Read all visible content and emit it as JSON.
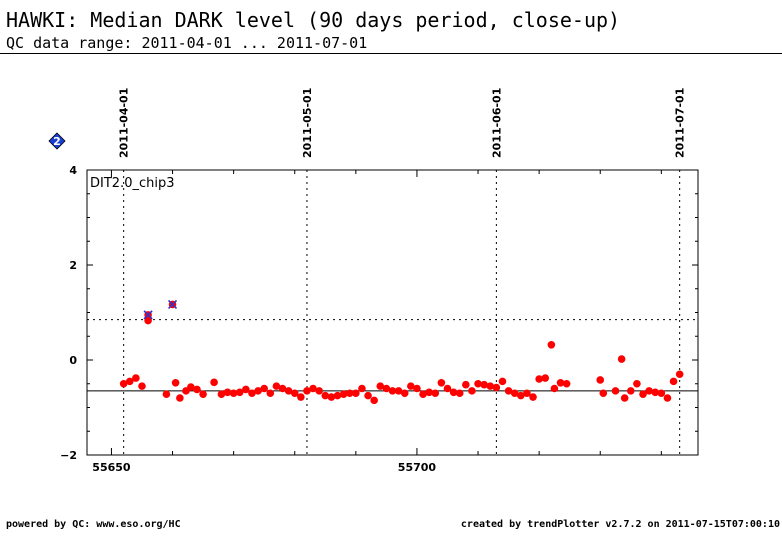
{
  "page": {
    "title": "HAWKI: Median DARK level (90 days period, close-up)",
    "subtitle": "QC data range: 2011-04-01 ... 2011-07-01",
    "footer_left": "powered by QC: www.eso.org/HC",
    "footer_right": "created by trendPlotter v2.7.2 on 2011-07-15T07:00:10"
  },
  "chart_data": {
    "type": "scatter",
    "panel_label": "DIT2.0_chip3",
    "xlim": [
      55646,
      55746
    ],
    "ylim": [
      -2,
      4
    ],
    "x_ticks": [
      55650,
      55700
    ],
    "x_tick_labels": [
      "55650",
      "55700"
    ],
    "y_ticks": [
      -2,
      0,
      2,
      4
    ],
    "y_tick_labels": [
      "−2",
      "0",
      "2",
      "4"
    ],
    "date_markers": [
      {
        "mjd": 55652,
        "label": "2011-04-01"
      },
      {
        "mjd": 55682,
        "label": "2011-05-01"
      },
      {
        "mjd": 55713,
        "label": "2011-06-01"
      },
      {
        "mjd": 55743,
        "label": "2011-07-01"
      }
    ],
    "reference_line": -0.65,
    "threshold_line": 0.85,
    "marker_badge": "2",
    "series": [
      {
        "marker": "filled-circle",
        "color": "#ff0000",
        "points": [
          [
            55652.0,
            -0.5
          ],
          [
            55653.0,
            -0.45
          ],
          [
            55654.0,
            -0.38
          ],
          [
            55655.0,
            -0.55
          ],
          [
            55656.0,
            0.83
          ],
          [
            55659.0,
            -0.72
          ],
          [
            55660.5,
            -0.48
          ],
          [
            55661.2,
            -0.8
          ],
          [
            55662.2,
            -0.65
          ],
          [
            55663.0,
            -0.57
          ],
          [
            55664.0,
            -0.62
          ],
          [
            55665.0,
            -0.72
          ],
          [
            55666.8,
            -0.47
          ],
          [
            55668.0,
            -0.72
          ],
          [
            55669.0,
            -0.68
          ],
          [
            55670.0,
            -0.7
          ],
          [
            55671.0,
            -0.68
          ],
          [
            55672.0,
            -0.62
          ],
          [
            55673.0,
            -0.7
          ],
          [
            55674.0,
            -0.65
          ],
          [
            55675.0,
            -0.6
          ],
          [
            55676.0,
            -0.7
          ],
          [
            55677.0,
            -0.55
          ],
          [
            55678.0,
            -0.6
          ],
          [
            55679.0,
            -0.65
          ],
          [
            55680.0,
            -0.7
          ],
          [
            55681.0,
            -0.78
          ],
          [
            55682.0,
            -0.65
          ],
          [
            55683.0,
            -0.6
          ],
          [
            55684.0,
            -0.65
          ],
          [
            55685.0,
            -0.75
          ],
          [
            55686.0,
            -0.78
          ],
          [
            55687.0,
            -0.75
          ],
          [
            55688.0,
            -0.72
          ],
          [
            55689.0,
            -0.7
          ],
          [
            55690.0,
            -0.7
          ],
          [
            55691.0,
            -0.6
          ],
          [
            55692.0,
            -0.75
          ],
          [
            55693.0,
            -0.85
          ],
          [
            55694.0,
            -0.55
          ],
          [
            55695.0,
            -0.6
          ],
          [
            55696.0,
            -0.65
          ],
          [
            55697.0,
            -0.65
          ],
          [
            55698.0,
            -0.7
          ],
          [
            55699.0,
            -0.55
          ],
          [
            55700.0,
            -0.6
          ],
          [
            55701.0,
            -0.72
          ],
          [
            55702.0,
            -0.68
          ],
          [
            55703.0,
            -0.7
          ],
          [
            55704.0,
            -0.48
          ],
          [
            55705.0,
            -0.6
          ],
          [
            55706.0,
            -0.68
          ],
          [
            55707.0,
            -0.7
          ],
          [
            55708.0,
            -0.52
          ],
          [
            55709.0,
            -0.65
          ],
          [
            55710.0,
            -0.5
          ],
          [
            55711.0,
            -0.52
          ],
          [
            55712.0,
            -0.55
          ],
          [
            55713.0,
            -0.58
          ],
          [
            55714.0,
            -0.45
          ],
          [
            55715.0,
            -0.65
          ],
          [
            55716.0,
            -0.7
          ],
          [
            55717.0,
            -0.75
          ],
          [
            55718.0,
            -0.7
          ],
          [
            55719.0,
            -0.78
          ],
          [
            55720.0,
            -0.4
          ],
          [
            55721.0,
            -0.38
          ],
          [
            55722.0,
            0.32
          ],
          [
            55722.5,
            -0.6
          ],
          [
            55723.5,
            -0.48
          ],
          [
            55724.5,
            -0.5
          ],
          [
            55730.0,
            -0.42
          ],
          [
            55730.5,
            -0.7
          ],
          [
            55732.5,
            -0.65
          ],
          [
            55733.5,
            0.02
          ],
          [
            55734.0,
            -0.8
          ],
          [
            55735.0,
            -0.65
          ],
          [
            55736.0,
            -0.5
          ],
          [
            55737.0,
            -0.72
          ],
          [
            55738.0,
            -0.65
          ],
          [
            55739.0,
            -0.68
          ],
          [
            55740.0,
            -0.7
          ],
          [
            55741.0,
            -0.8
          ],
          [
            55742.0,
            -0.45
          ],
          [
            55743.0,
            -0.3
          ]
        ]
      },
      {
        "marker": "flagged-cross",
        "color": "#3333cc",
        "points": [
          [
            55656.0,
            0.95
          ],
          [
            55660.0,
            1.17
          ]
        ]
      }
    ]
  }
}
